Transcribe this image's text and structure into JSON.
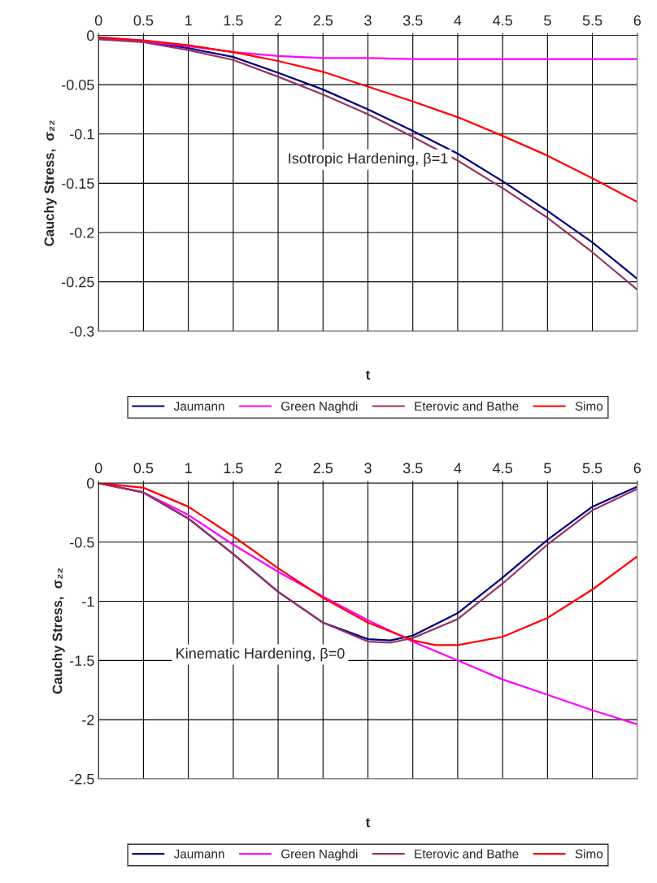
{
  "chart_data": [
    {
      "type": "line",
      "xlabel": "t",
      "ylabel": "Cauchy Stress,  σ₂₂",
      "annotations": [
        "Isotropic Hardening, β=1"
      ],
      "x": [
        0,
        0.5,
        1,
        1.5,
        2,
        2.5,
        3,
        3.5,
        4,
        4.5,
        5,
        5.5,
        6
      ],
      "series": [
        {
          "name": "Jaumann",
          "color": "#000080",
          "values": [
            -0.003,
            -0.006,
            -0.013,
            -0.022,
            -0.038,
            -0.055,
            -0.075,
            -0.097,
            -0.12,
            -0.148,
            -0.178,
            -0.21,
            -0.247
          ]
        },
        {
          "name": "Green Naghdi",
          "color": "#ff00ff",
          "values": [
            -0.002,
            -0.006,
            -0.011,
            -0.017,
            -0.021,
            -0.023,
            -0.023,
            -0.024,
            -0.024,
            -0.024,
            -0.024,
            -0.024,
            -0.024
          ]
        },
        {
          "name": "Eterovic and Bathe",
          "color": "#993366",
          "values": [
            -0.004,
            -0.007,
            -0.015,
            -0.025,
            -0.042,
            -0.06,
            -0.08,
            -0.103,
            -0.127,
            -0.155,
            -0.185,
            -0.22,
            -0.258
          ]
        },
        {
          "name": "Simo",
          "color": "#ff0000",
          "values": [
            -0.002,
            -0.005,
            -0.01,
            -0.017,
            -0.026,
            -0.037,
            -0.052,
            -0.067,
            -0.083,
            -0.102,
            -0.122,
            -0.145,
            -0.169
          ]
        }
      ],
      "xlim": [
        0,
        6
      ],
      "xticks": [
        0,
        0.5,
        1,
        1.5,
        2,
        2.5,
        3,
        3.5,
        4,
        4.5,
        5,
        5.5,
        6
      ],
      "ylim": [
        -0.3,
        0
      ],
      "yticks": [
        -0.3,
        -0.25,
        -0.2,
        -0.15,
        -0.1,
        -0.05,
        0
      ],
      "grid": true,
      "legend": "bottom",
      "marker": "none",
      "line_style": "solid"
    },
    {
      "type": "line",
      "xlabel": "t",
      "ylabel": "Cauchy Stress,  σ₂₂",
      "annotations": [
        "Kinematic Hardening, β=0"
      ],
      "series": [
        {
          "name": "Jaumann",
          "color": "#000080",
          "x": [
            0,
            0.5,
            1,
            1.5,
            2,
            2.5,
            3,
            3.25,
            3.5,
            4,
            4.5,
            5,
            5.5,
            6
          ],
          "values": [
            0,
            -0.08,
            -0.3,
            -0.6,
            -0.92,
            -1.18,
            -1.32,
            -1.33,
            -1.29,
            -1.1,
            -0.8,
            -0.48,
            -0.2,
            -0.03
          ]
        },
        {
          "name": "Green Naghdi",
          "color": "#ff00ff",
          "x": [
            0,
            0.5,
            1,
            1.5,
            2,
            2.5,
            3,
            3.5,
            4,
            4.5,
            5,
            5.5,
            6
          ],
          "values": [
            0,
            -0.08,
            -0.27,
            -0.52,
            -0.75,
            -0.96,
            -1.16,
            -1.34,
            -1.5,
            -1.66,
            -1.79,
            -1.92,
            -2.04
          ]
        },
        {
          "name": "Eterovic and Bathe",
          "color": "#993366",
          "x": [
            0,
            0.5,
            1,
            1.5,
            2,
            2.5,
            3,
            3.25,
            3.5,
            4,
            4.5,
            5,
            5.5,
            6
          ],
          "values": [
            0,
            -0.08,
            -0.3,
            -0.6,
            -0.92,
            -1.18,
            -1.34,
            -1.35,
            -1.31,
            -1.15,
            -0.85,
            -0.52,
            -0.23,
            -0.05
          ]
        },
        {
          "name": "Simo",
          "color": "#ff0000",
          "x": [
            0,
            0.5,
            1,
            1.5,
            2,
            2.5,
            3,
            3.5,
            3.75,
            4,
            4.5,
            5,
            5.5,
            6
          ],
          "values": [
            0,
            -0.04,
            -0.2,
            -0.45,
            -0.72,
            -0.97,
            -1.18,
            -1.33,
            -1.37,
            -1.37,
            -1.3,
            -1.14,
            -0.9,
            -0.62
          ]
        }
      ],
      "xlim": [
        0,
        6
      ],
      "xticks": [
        0,
        0.5,
        1,
        1.5,
        2,
        2.5,
        3,
        3.5,
        4,
        4.5,
        5,
        5.5,
        6
      ],
      "ylim": [
        -2.5,
        0
      ],
      "yticks": [
        -2.5,
        -2,
        -1.5,
        -1,
        -0.5,
        0
      ],
      "grid": true,
      "legend": "bottom",
      "marker": "none",
      "line_style": "solid"
    }
  ]
}
